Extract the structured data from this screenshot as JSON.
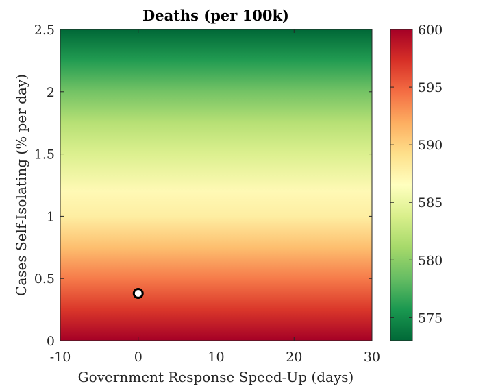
{
  "chart_data": {
    "type": "heatmap",
    "title": "Deaths (per 100k)",
    "xlabel": "Government Response Speed-Up (days)",
    "ylabel": "Cases Self-Isolating (% per day)",
    "xlim": [
      -10,
      30
    ],
    "ylim": [
      0,
      2.5
    ],
    "xticks": [
      -10,
      0,
      10,
      20,
      30
    ],
    "yticks": [
      0,
      0.5,
      1,
      1.5,
      2,
      2.5
    ],
    "xtick_labels": [
      "-10",
      "0",
      "10",
      "20",
      "30"
    ],
    "ytick_labels": [
      "0",
      "0.5",
      "1",
      "1.5",
      "2",
      "2.5"
    ],
    "colorbar": {
      "range": [
        573,
        600
      ],
      "ticks": [
        575,
        580,
        585,
        590,
        595,
        600
      ],
      "tick_labels": [
        "575",
        "580",
        "585",
        "590",
        "595",
        "600"
      ],
      "colors": [
        "#006837",
        "#1a9850",
        "#66bd63",
        "#a6d96a",
        "#d9ef8b",
        "#ffffbf",
        "#fee08b",
        "#fdae61",
        "#f46d43",
        "#d73027",
        "#a50026"
      ]
    },
    "value_profile": {
      "y": [
        0,
        0.25,
        0.5,
        0.75,
        1.0,
        1.2,
        1.5,
        1.75,
        2.0,
        2.25,
        2.5
      ],
      "deaths": [
        600,
        597,
        594,
        591,
        588,
        587,
        584,
        582,
        579,
        576,
        573
      ]
    },
    "marker": {
      "x": 0,
      "y": 0.38
    }
  }
}
